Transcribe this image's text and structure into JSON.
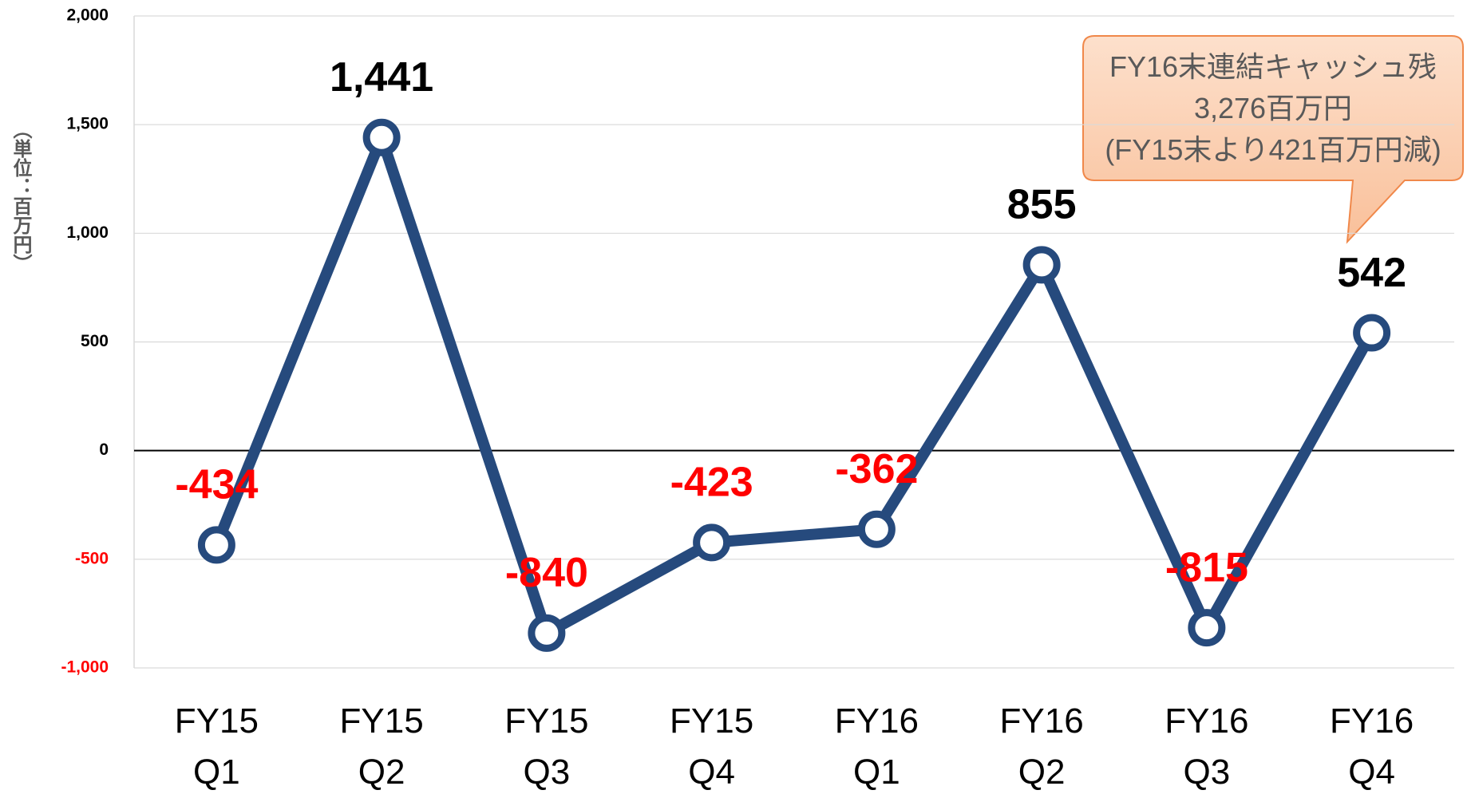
{
  "chart_data": {
    "type": "line",
    "categories": [
      "FY15\nQ1",
      "FY15\nQ2",
      "FY15\nQ3",
      "FY15\nQ4",
      "FY16\nQ1",
      "FY16\nQ2",
      "FY16\nQ3",
      "FY16\nQ4"
    ],
    "series": [
      {
        "color": "#264a7d",
        "values": [
          -434,
          1441,
          -840,
          -423,
          -362,
          855,
          -815,
          542
        ],
        "value_labels": [
          "-434",
          "1,441",
          "-840",
          "-423",
          "-362",
          "855",
          "-815",
          "542"
        ]
      }
    ],
    "ylabel": "（単位：百万円）",
    "ylim": [
      -1000,
      2000
    ],
    "yticks": [
      {
        "value": -1000,
        "label": "-1,000"
      },
      -500,
      0,
      500,
      {
        "value": 1000,
        "label": "1,000"
      },
      {
        "value": 1500,
        "label": "1,500"
      },
      {
        "value": 2000,
        "label": "2,000"
      }
    ],
    "grid": true,
    "negative_color": "#ff0000",
    "annotation": {
      "lines": [
        "FY16末連結キャッシュ残",
        "3,276百万円",
        "(FY15末より421百万円減)"
      ]
    }
  }
}
